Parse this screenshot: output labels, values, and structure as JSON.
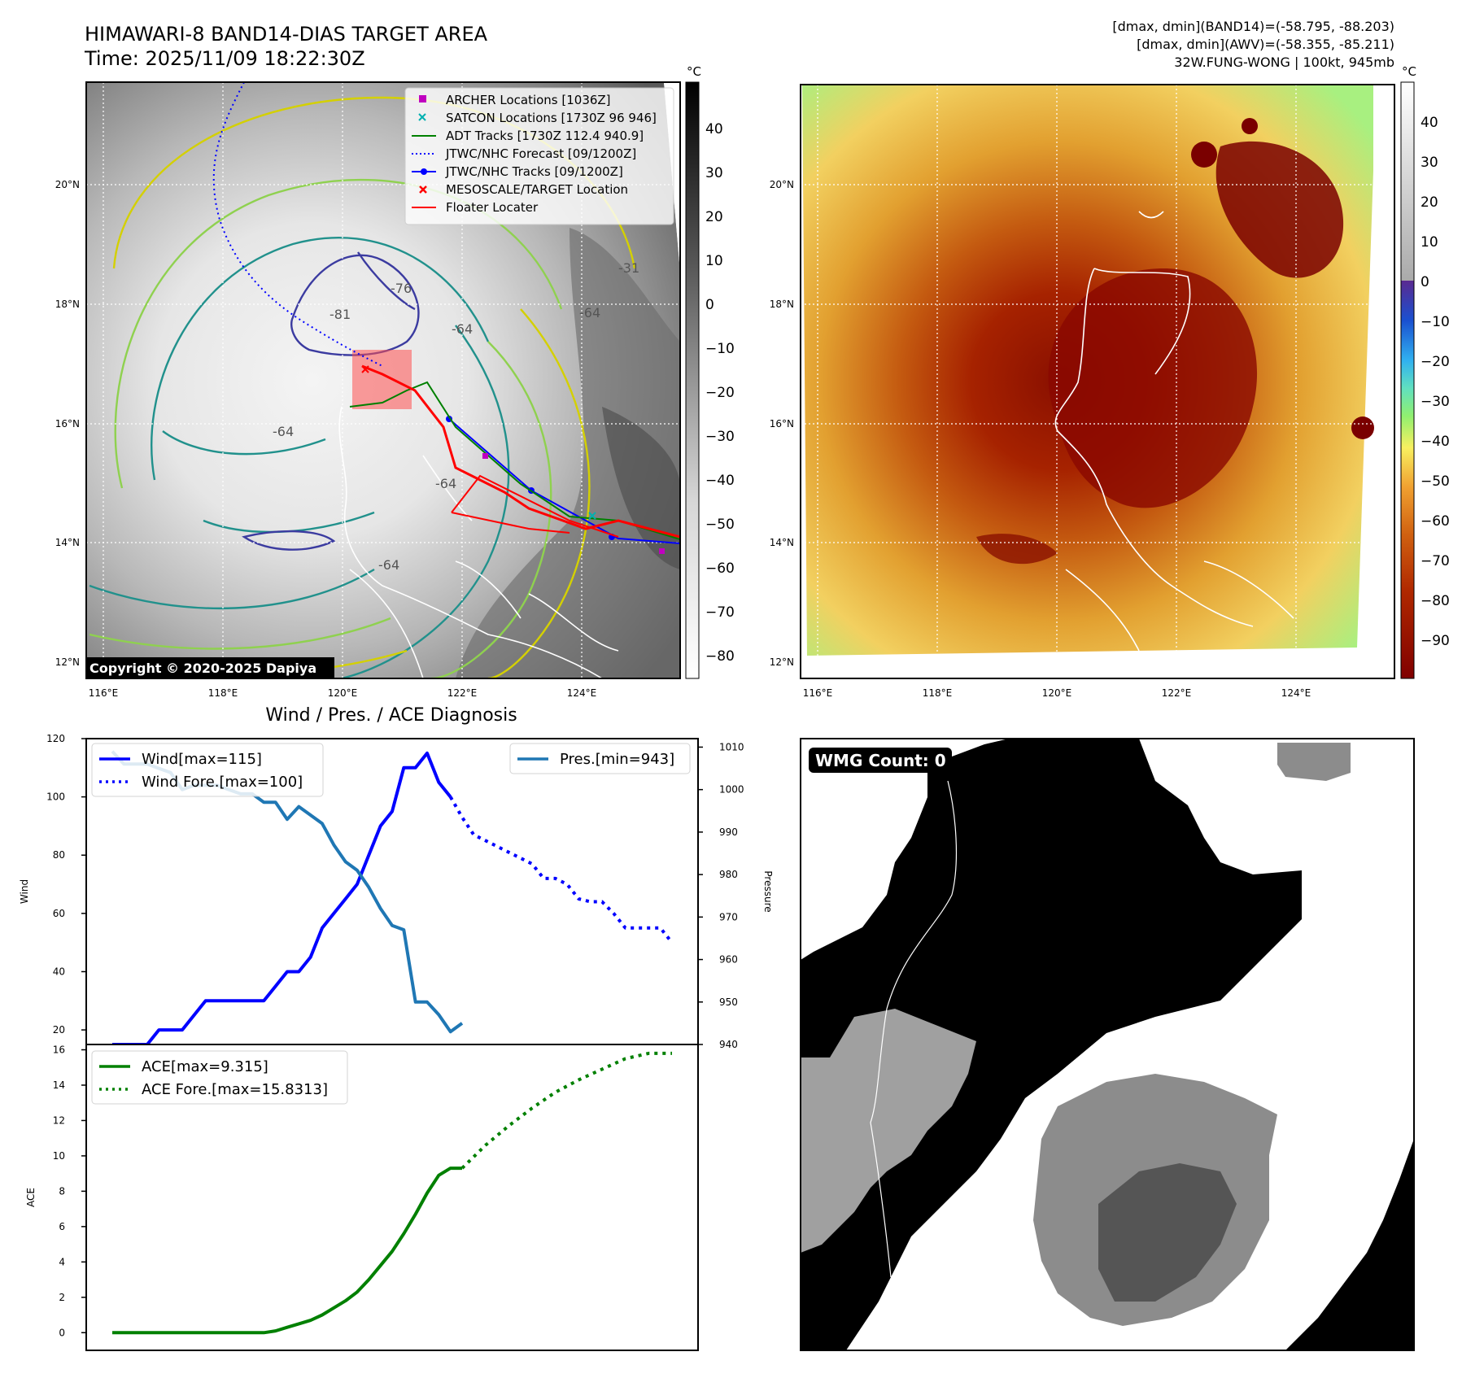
{
  "header": {
    "title": "HIMAWARI-8 BAND14-DIAS TARGET AREA",
    "time": "Time: 2025/11/09 18:22:30Z",
    "dmax_band14": "[dmax, dmin](BAND14)=(-58.795, -88.203)",
    "dmax_awv": "[dmax, dmin](AWV)=(-58.355, -85.211)",
    "storm": "32W.FUNG-WONG | 100kt, 945mb"
  },
  "map": {
    "copyright": "Copyright © 2020-2025 Dapiya",
    "lon_labels": [
      "116°E",
      "118°E",
      "120°E",
      "122°E",
      "124°E"
    ],
    "lat_labels": [
      "20°N",
      "18°N",
      "16°N",
      "14°N",
      "12°N"
    ],
    "unit": "°C",
    "colorbar_left_ticks": [
      "40",
      "30",
      "20",
      "10",
      "0",
      "−10",
      "−20",
      "−30",
      "−40",
      "−50",
      "−60",
      "−70",
      "−80"
    ],
    "colorbar_right_ticks": [
      "40",
      "30",
      "20",
      "10",
      "0",
      "−10",
      "−20",
      "−30",
      "−40",
      "−50",
      "−60",
      "−70",
      "−80",
      "−90"
    ],
    "contour_labels": [
      "-76",
      "-81",
      "-64",
      "-64",
      "-64",
      "-31",
      "-64",
      "-64"
    ],
    "legend": [
      {
        "label": "ARCHER Locations [1036Z]",
        "color": "#c000c0",
        "marker": "square"
      },
      {
        "label": "SATCON Locations [1730Z 96 946]",
        "color": "#00b0b0",
        "marker": "x"
      },
      {
        "label": "ADT Tracks [1730Z 112.4 940.9]",
        "color": "#008000",
        "marker": "line"
      },
      {
        "label": "JTWC/NHC Forecast [09/1200Z]",
        "color": "#0000ff",
        "marker": "dotted"
      },
      {
        "label": "JTWC/NHC Tracks [09/1200Z]",
        "color": "#0000ff",
        "marker": "line-dot"
      },
      {
        "label": "MESOSCALE/TARGET Location",
        "color": "#ff0000",
        "marker": "x"
      },
      {
        "label": "Floater Locater",
        "color": "#ff0000",
        "marker": "line"
      }
    ]
  },
  "diag": {
    "title": "Wind / Pres. / ACE Diagnosis",
    "wind_ylabel": "Wind",
    "pres_ylabel": "Pressure",
    "ace_ylabel": "ACE",
    "wind_ticks": [
      "120",
      "100",
      "80",
      "60",
      "40",
      "20"
    ],
    "pres_ticks": [
      "1010",
      "1000",
      "990",
      "980",
      "970",
      "960",
      "950",
      "940"
    ],
    "ace_ticks": [
      "16",
      "14",
      "12",
      "10",
      "8",
      "6",
      "4",
      "2",
      "0"
    ],
    "legend_wind": "Wind[max=115]",
    "legend_wind_fore": "Wind Fore.[max=100]",
    "legend_pres": "Pres.[min=943]",
    "legend_ace": "ACE[max=9.315]",
    "legend_ace_fore": "ACE Fore.[max=15.8313]"
  },
  "wmg": {
    "label": "WMG Count: 0"
  },
  "chart_data": [
    {
      "type": "line",
      "title": "Wind / Pres. / ACE Diagnosis",
      "ylabel": "Wind",
      "ylim": [
        15,
        120
      ],
      "x": [
        0,
        1,
        2,
        3,
        4,
        5,
        6,
        7,
        8,
        9,
        10,
        11,
        12,
        13,
        14,
        15,
        16,
        17,
        18,
        19,
        20,
        21,
        22,
        23,
        24,
        25,
        26,
        27,
        28,
        29,
        30,
        31,
        32,
        33,
        34,
        35,
        36,
        37,
        38,
        39,
        40,
        41,
        42,
        43,
        44,
        45,
        46,
        47,
        48
      ],
      "series": [
        {
          "name": "Wind[max=115]",
          "color": "#0000ff",
          "style": "solid",
          "x": [
            0,
            1,
            2,
            3,
            4,
            5,
            6,
            7,
            8,
            9,
            10,
            11,
            12,
            13,
            14,
            15,
            16,
            17,
            18,
            19,
            20,
            21,
            22,
            23,
            24,
            25,
            26,
            27,
            28,
            29
          ],
          "values": [
            15,
            15,
            15,
            15,
            20,
            20,
            20,
            25,
            30,
            30,
            30,
            30,
            30,
            30,
            35,
            40,
            40,
            45,
            55,
            60,
            65,
            70,
            80,
            90,
            95,
            110,
            110,
            115,
            105,
            100
          ]
        },
        {
          "name": "Wind Fore.[max=100]",
          "color": "#0000ff",
          "style": "dotted",
          "x": [
            29,
            30,
            31,
            32,
            33,
            34,
            35,
            36,
            37,
            38,
            39,
            40,
            41,
            42,
            43,
            44,
            45,
            46,
            47,
            48
          ],
          "values": [
            100,
            93,
            87,
            85,
            83,
            81,
            79,
            77,
            72,
            72,
            70,
            65,
            64,
            64,
            60,
            55,
            55,
            55,
            55,
            50
          ]
        },
        {
          "name": "Pres.[min=943]",
          "color": "#1f77b4",
          "style": "solid",
          "axis": "right",
          "ylim": [
            940,
            1012
          ],
          "x": [
            0,
            1,
            2,
            3,
            4,
            5,
            6,
            7,
            8,
            9,
            10,
            11,
            12,
            13,
            14,
            15,
            16,
            17,
            18,
            19,
            20,
            21,
            22,
            23,
            24,
            25,
            26,
            27,
            28,
            29,
            30
          ],
          "values": [
            1009,
            1006,
            1006,
            1006,
            1005,
            1004,
            1000,
            1001,
            1001,
            1001,
            1000,
            999,
            999,
            997,
            997,
            993,
            996,
            994,
            992,
            987,
            983,
            981,
            977,
            972,
            968,
            967,
            950,
            950,
            947,
            943,
            945
          ]
        }
      ]
    },
    {
      "type": "line",
      "ylabel": "ACE",
      "ylim": [
        -1,
        16.3
      ],
      "series": [
        {
          "name": "ACE[max=9.315]",
          "color": "#008000",
          "style": "solid",
          "x": [
            0,
            3,
            6,
            9,
            12,
            13,
            14,
            15,
            16,
            17,
            18,
            19,
            20,
            21,
            22,
            23,
            24,
            25,
            26,
            27,
            28,
            29,
            30
          ],
          "values": [
            0,
            0,
            0,
            0,
            0,
            0,
            0.1,
            0.3,
            0.5,
            0.7,
            1.0,
            1.4,
            1.8,
            2.3,
            3.0,
            3.8,
            4.6,
            5.6,
            6.7,
            7.9,
            8.9,
            9.3,
            9.3
          ]
        },
        {
          "name": "ACE Fore.[max=15.8313]",
          "color": "#008000",
          "style": "dotted",
          "x": [
            30,
            32,
            34,
            36,
            38,
            40,
            42,
            44,
            46,
            48
          ],
          "values": [
            9.3,
            10.6,
            11.7,
            12.7,
            13.6,
            14.3,
            14.9,
            15.5,
            15.8,
            15.8
          ]
        }
      ]
    }
  ],
  "colors": {
    "frame": "#000000",
    "floater": "#ff0000",
    "jtwc": "#0000ff",
    "adt": "#008000",
    "pressure": "#1f77b4"
  }
}
